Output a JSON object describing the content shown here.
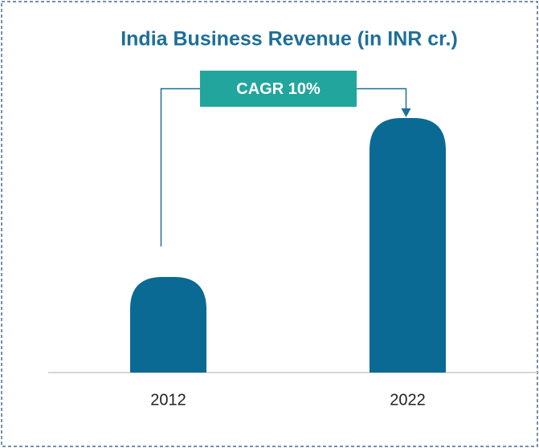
{
  "chart_data": {
    "type": "bar",
    "title": "India Business Revenue (in INR cr.)",
    "categories": [
      "2012",
      "2022"
    ],
    "values": [
      119,
      317
    ],
    "color": "#0a6a93",
    "ylim": [
      0,
      340
    ],
    "annotation": "CAGR 10%",
    "annotation_color": "#22a59c"
  }
}
